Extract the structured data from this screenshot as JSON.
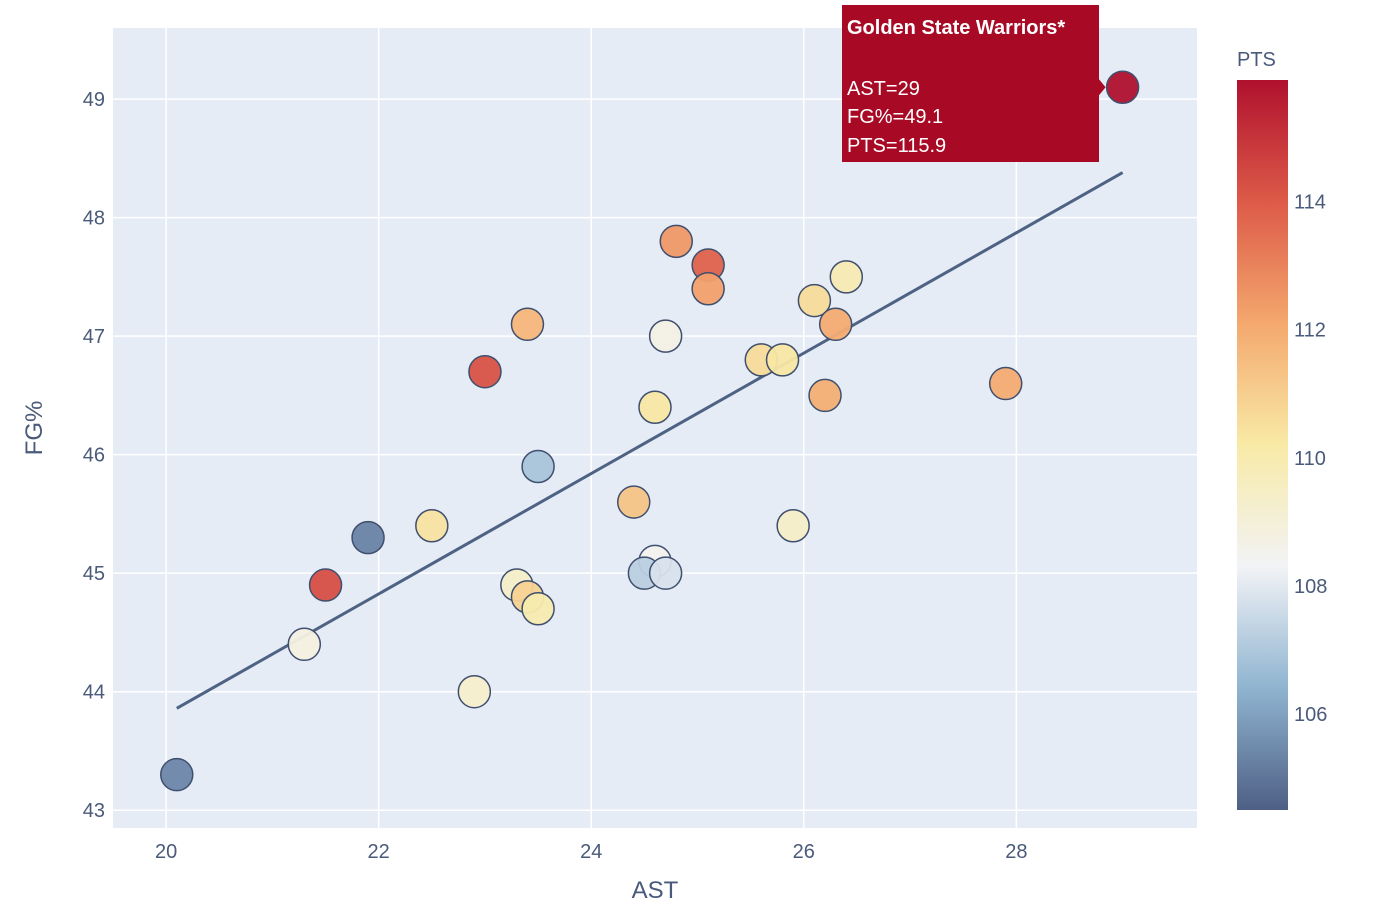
{
  "chart_data": {
    "type": "scatter",
    "xlabel": "AST",
    "ylabel": "FG%",
    "xlim": [
      19.5,
      29.7
    ],
    "ylim": [
      42.85,
      49.6
    ],
    "x_ticks": [
      20,
      22,
      24,
      26,
      28
    ],
    "y_ticks": [
      43,
      44,
      45,
      46,
      47,
      48,
      49
    ],
    "grid": true,
    "colorbar": {
      "title": "PTS",
      "range": [
        104.5,
        115.9
      ],
      "ticks": [
        106,
        108,
        110,
        112,
        114
      ],
      "colorscale": [
        "#4e5f85",
        "#8fb4d0",
        "#f2f3f6",
        "#f8eaa6",
        "#f4a86e",
        "#dd5a48",
        "#b0112e"
      ]
    },
    "trendline": {
      "x": [
        20.1,
        29.0
      ],
      "y": [
        43.86,
        48.38
      ],
      "color": "#4e6283"
    },
    "points": [
      {
        "x": 29.0,
        "y": 49.1,
        "pts": 115.9
      },
      {
        "x": 24.8,
        "y": 47.8,
        "pts": 112.5
      },
      {
        "x": 25.1,
        "y": 47.6,
        "pts": 113.8
      },
      {
        "x": 25.1,
        "y": 47.4,
        "pts": 112.3
      },
      {
        "x": 26.4,
        "y": 47.5,
        "pts": 109.9
      },
      {
        "x": 26.1,
        "y": 47.3,
        "pts": 110.6
      },
      {
        "x": 26.3,
        "y": 47.1,
        "pts": 112.0
      },
      {
        "x": 23.4,
        "y": 47.1,
        "pts": 111.7
      },
      {
        "x": 24.7,
        "y": 47.0,
        "pts": 108.7
      },
      {
        "x": 23.0,
        "y": 46.7,
        "pts": 114.2
      },
      {
        "x": 25.6,
        "y": 46.8,
        "pts": 110.6
      },
      {
        "x": 25.8,
        "y": 46.8,
        "pts": 110.3
      },
      {
        "x": 27.9,
        "y": 46.6,
        "pts": 112.0
      },
      {
        "x": 26.2,
        "y": 46.5,
        "pts": 111.9
      },
      {
        "x": 24.6,
        "y": 46.4,
        "pts": 110.3
      },
      {
        "x": 23.5,
        "y": 45.9,
        "pts": 106.9
      },
      {
        "x": 24.4,
        "y": 45.6,
        "pts": 111.3
      },
      {
        "x": 22.5,
        "y": 45.4,
        "pts": 110.4
      },
      {
        "x": 25.9,
        "y": 45.4,
        "pts": 109.4
      },
      {
        "x": 21.9,
        "y": 45.3,
        "pts": 105.3
      },
      {
        "x": 24.6,
        "y": 45.1,
        "pts": 108.5
      },
      {
        "x": 24.5,
        "y": 45.0,
        "pts": 107.2
      },
      {
        "x": 24.7,
        "y": 45.0,
        "pts": 107.8
      },
      {
        "x": 21.5,
        "y": 44.9,
        "pts": 114.3
      },
      {
        "x": 23.3,
        "y": 44.9,
        "pts": 109.4
      },
      {
        "x": 23.4,
        "y": 44.8,
        "pts": 110.9
      },
      {
        "x": 23.5,
        "y": 44.7,
        "pts": 110.0
      },
      {
        "x": 21.3,
        "y": 44.4,
        "pts": 108.8
      },
      {
        "x": 22.9,
        "y": 44.0,
        "pts": 109.3
      },
      {
        "x": 20.1,
        "y": 43.3,
        "pts": 105.4
      }
    ],
    "tooltip": {
      "team": "Golden State Warriors*",
      "ast": "AST=29",
      "fg": "FG%=49.1",
      "pts": "PTS=115.9",
      "color": "#a80a26",
      "anchor_x": 29.0,
      "anchor_y": 49.1
    }
  }
}
